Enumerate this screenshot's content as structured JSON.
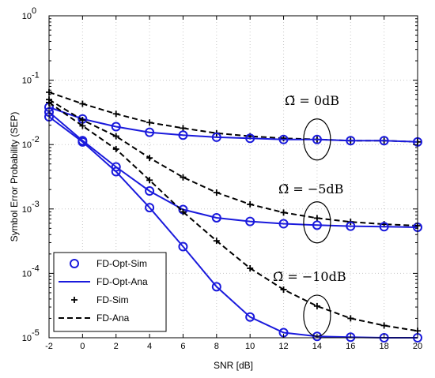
{
  "chart_data": {
    "type": "line",
    "xlabel": "SNR [dB]",
    "ylabel": "Symbol Error Probability (SEP)",
    "xlim": [
      -2,
      20
    ],
    "ylim": [
      1e-05,
      1
    ],
    "yscale": "log",
    "grid": true,
    "legend_position": "bottom-left",
    "xticks": [
      -2,
      0,
      2,
      4,
      6,
      8,
      10,
      12,
      14,
      16,
      18,
      20
    ],
    "yticks": [
      {
        "value": 1,
        "base": "10",
        "exp": "0"
      },
      {
        "value": 0.1,
        "base": "10",
        "exp": "-1"
      },
      {
        "value": 0.01,
        "base": "10",
        "exp": "-2"
      },
      {
        "value": 0.001,
        "base": "10",
        "exp": "-3"
      },
      {
        "value": 0.0001,
        "base": "10",
        "exp": "-4"
      },
      {
        "value": 1e-05,
        "base": "10",
        "exp": "-5"
      }
    ],
    "x": [
      -2,
      0,
      2,
      4,
      6,
      8,
      10,
      12,
      14,
      16,
      18,
      20
    ],
    "legend": [
      {
        "label": "FD-Opt-Sim",
        "style": "circle",
        "color": "#1a1adc"
      },
      {
        "label": "FD-Opt-Ana",
        "style": "solid",
        "color": "#1a1adc"
      },
      {
        "label": "FD-Sim",
        "style": "plus",
        "color": "#000000"
      },
      {
        "label": "FD-Ana",
        "style": "dashed",
        "color": "#000000"
      }
    ],
    "groups": [
      {
        "annotation": "Ω̃ = 0dB",
        "fd_opt": [
          0.038,
          0.025,
          0.019,
          0.0155,
          0.014,
          0.013,
          0.0125,
          0.012,
          0.012,
          0.0115,
          0.0115,
          0.011
        ],
        "fd": [
          0.065,
          0.043,
          0.03,
          0.022,
          0.018,
          0.015,
          0.0135,
          0.0125,
          0.012,
          0.0115,
          0.0115,
          0.011
        ]
      },
      {
        "annotation": "Ω̃ = −5dB",
        "fd_opt": [
          0.032,
          0.0115,
          0.0045,
          0.0019,
          0.00098,
          0.00073,
          0.00064,
          0.00059,
          0.00056,
          0.00054,
          0.00053,
          0.00052
        ],
        "fd": [
          0.05,
          0.024,
          0.0135,
          0.0062,
          0.0031,
          0.0018,
          0.00118,
          0.00088,
          0.00072,
          0.00063,
          0.00058,
          0.00055
        ]
      },
      {
        "annotation": "Ω̃ = −10dB",
        "fd_opt": [
          0.027,
          0.011,
          0.0038,
          0.00105,
          0.00026,
          6.2e-05,
          2.1e-05,
          1.2e-05,
          1.05e-05,
          1.02e-05,
          1e-05,
          1e-05
        ],
        "fd": [
          0.045,
          0.0195,
          0.0085,
          0.0028,
          0.0009,
          0.00032,
          0.00012,
          5.6e-05,
          3.1e-05,
          2e-05,
          1.55e-05,
          1.28e-05
        ]
      }
    ],
    "ellipses": [
      {
        "x": 14,
        "y": 0.012
      },
      {
        "x": 14,
        "y": 0.00062
      },
      {
        "x": 14,
        "y": 2.2e-05
      }
    ]
  }
}
